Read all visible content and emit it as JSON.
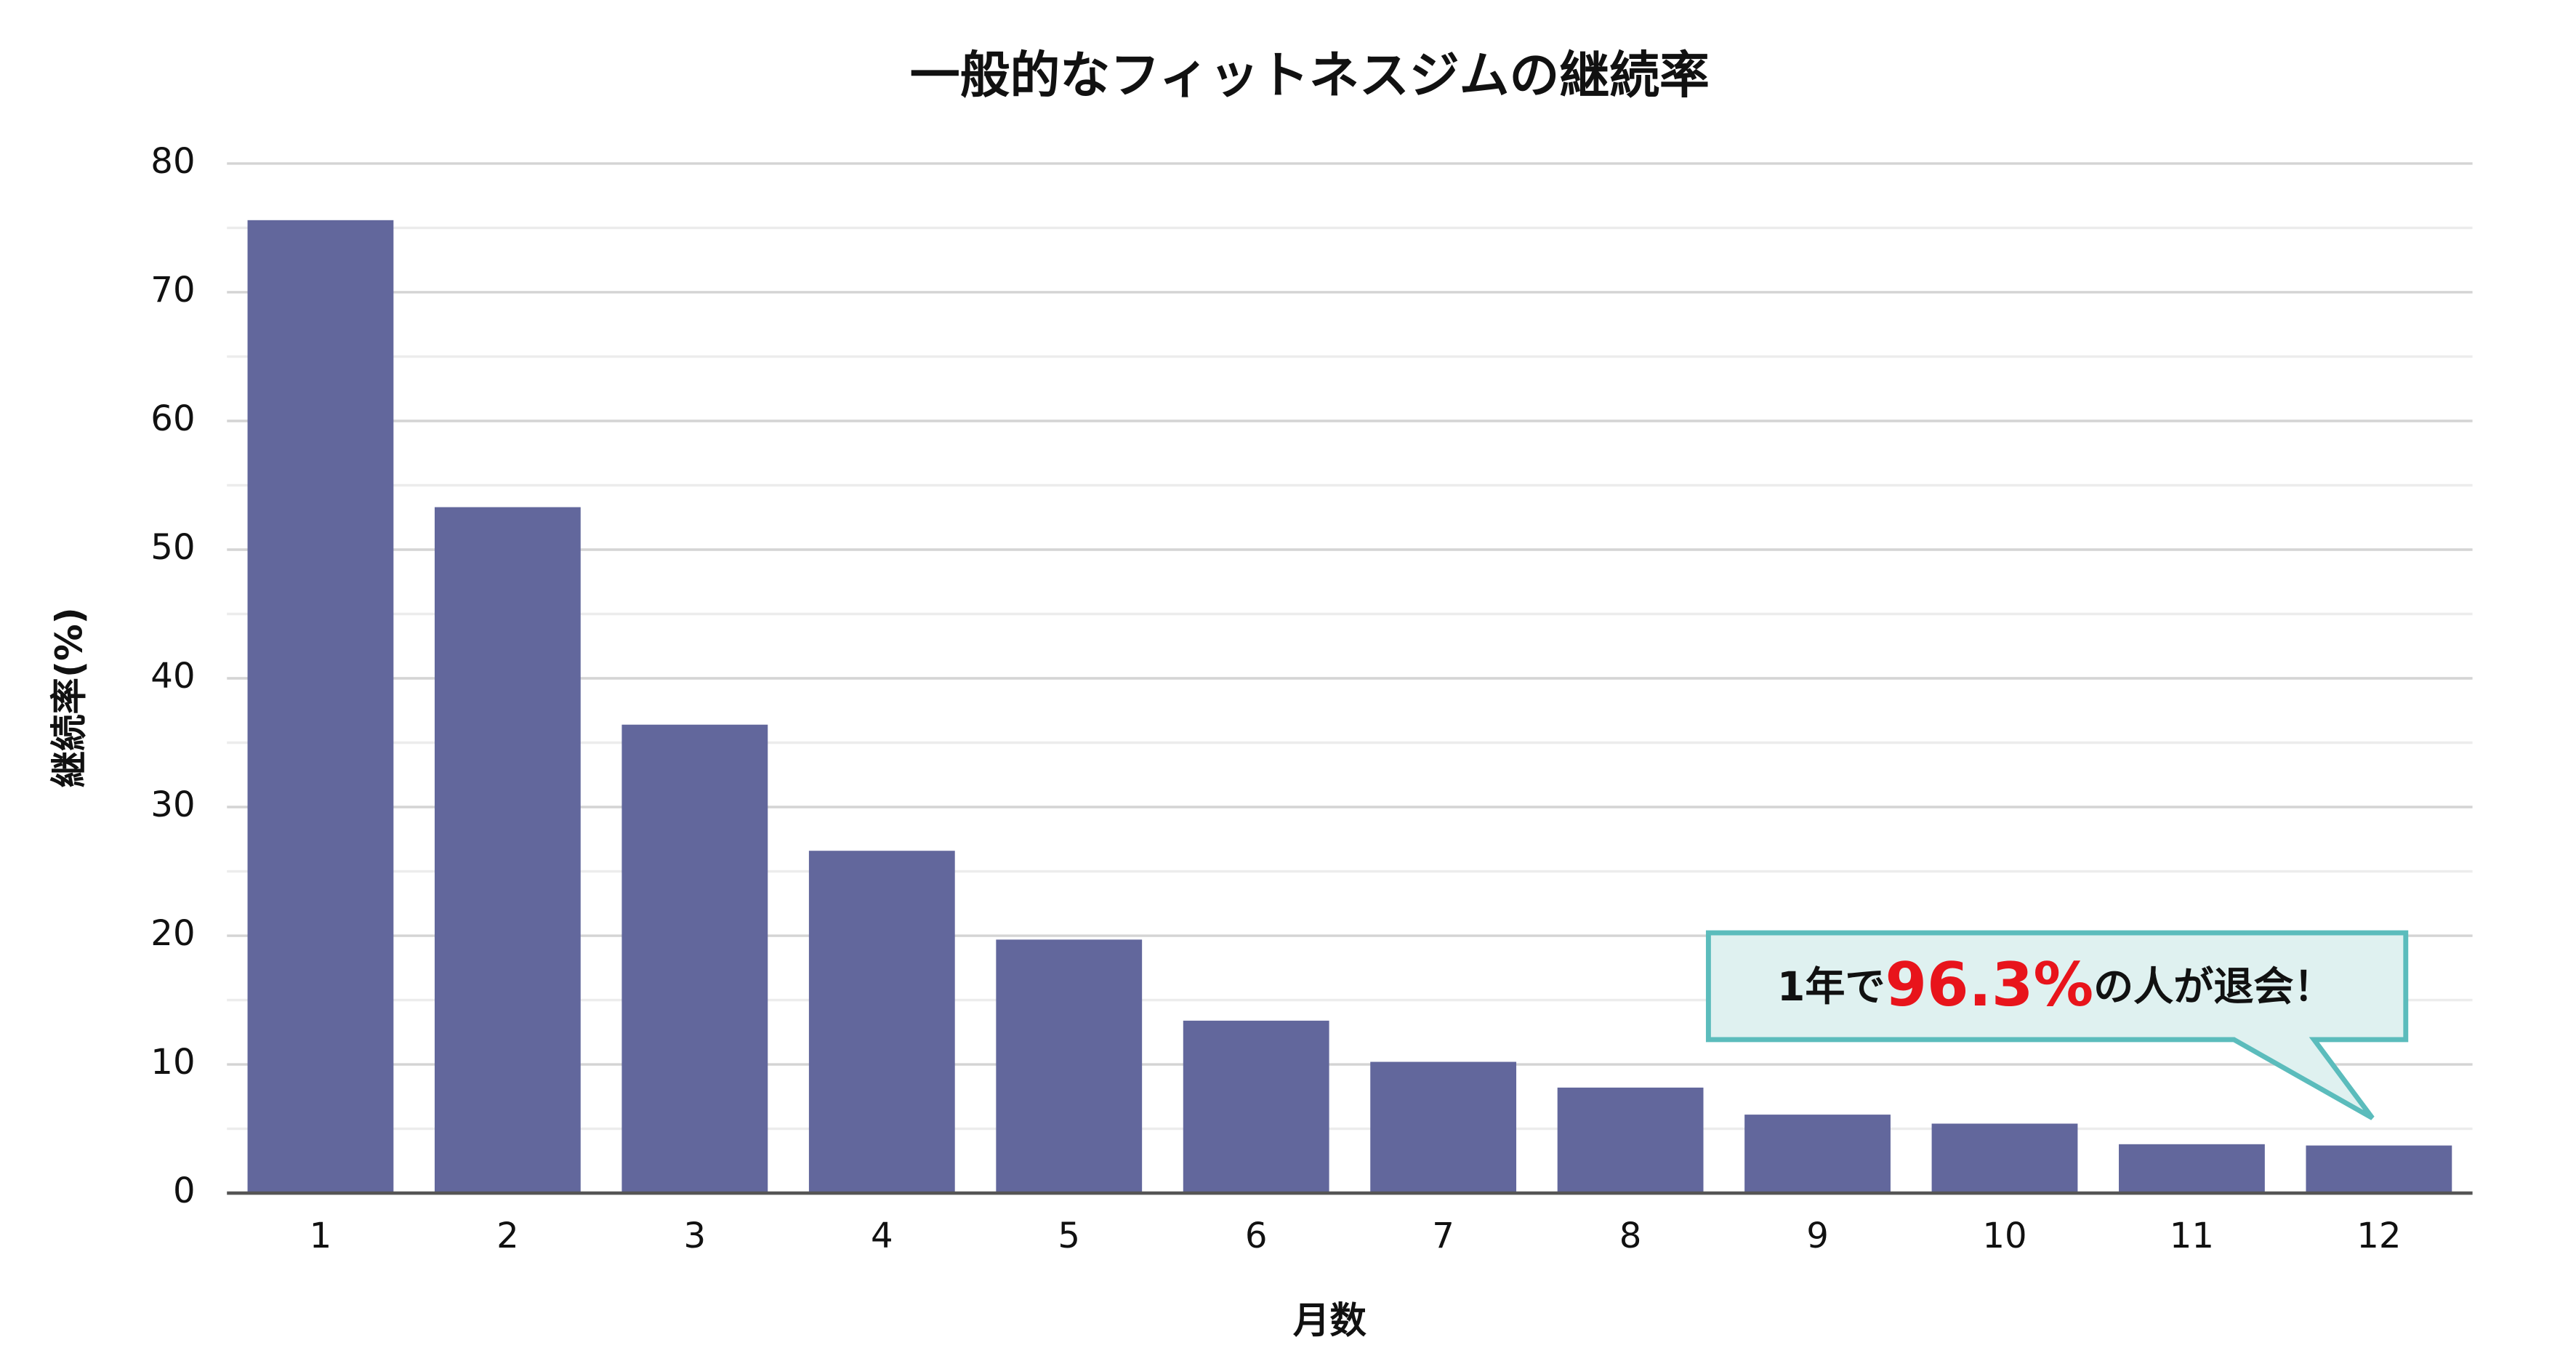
{
  "chart_data": {
    "type": "bar",
    "title": "一般的なフィットネスジムの継続率",
    "x_label": "月数",
    "y_label": "継続率(%)",
    "categories": [
      "1",
      "2",
      "3",
      "4",
      "5",
      "6",
      "7",
      "8",
      "9",
      "10",
      "11",
      "12"
    ],
    "values": [
      75.6,
      53.3,
      36.4,
      26.6,
      19.7,
      13.4,
      10.2,
      8.2,
      6.1,
      5.4,
      3.8,
      3.7
    ],
    "color": "#62679c",
    "ylim": [
      0,
      80
    ],
    "yticks": [
      0,
      10,
      20,
      30,
      40,
      50,
      60,
      70,
      80
    ],
    "minor_yticks": [
      5,
      15,
      25,
      35,
      45,
      55,
      65,
      75
    ],
    "grid": true,
    "annotation": [
      "1年で",
      "96.3%",
      "の人が退会！"
    ]
  }
}
